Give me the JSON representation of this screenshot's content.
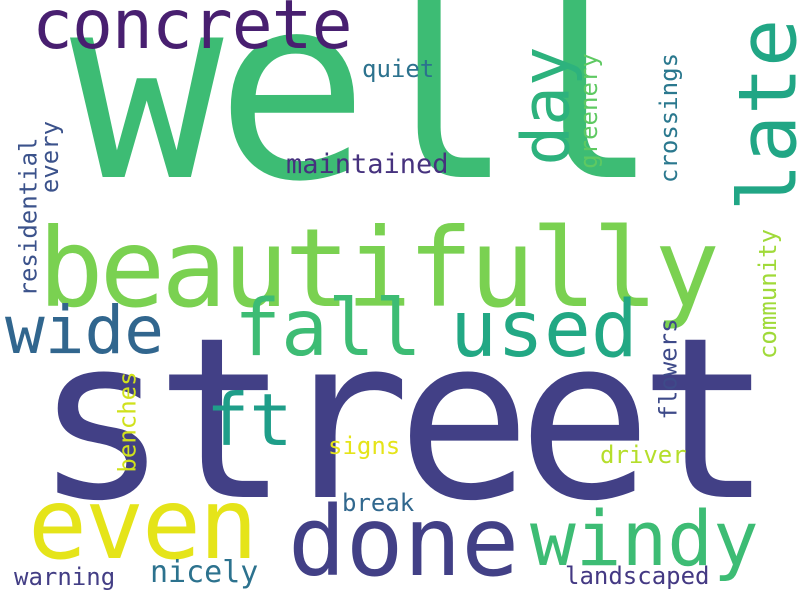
{
  "cloud": {
    "words": [
      {
        "text": "well",
        "color": "#3dbc74"
      },
      {
        "text": "street",
        "color": "#424086"
      },
      {
        "text": "beautifully",
        "color": "#7ad151"
      },
      {
        "text": "concrete",
        "color": "#481f70"
      },
      {
        "text": "day",
        "color": "#2db27d"
      },
      {
        "text": "late",
        "color": "#21a685"
      },
      {
        "text": "fall",
        "color": "#3dbc74"
      },
      {
        "text": "used",
        "color": "#22a884"
      },
      {
        "text": "wide",
        "color": "#31668e"
      },
      {
        "text": "ft",
        "color": "#1f9e89"
      },
      {
        "text": "even",
        "color": "#e5e419"
      },
      {
        "text": "done",
        "color": "#424086"
      },
      {
        "text": "windy",
        "color": "#3dbc74"
      },
      {
        "text": "quiet",
        "color": "#2c728e"
      },
      {
        "text": "maintained",
        "color": "#46327e"
      },
      {
        "text": "greenery",
        "color": "#5ec962"
      },
      {
        "text": "crossings",
        "color": "#2a788e"
      },
      {
        "text": "residential",
        "color": "#3b528b"
      },
      {
        "text": "every",
        "color": "#3b528b"
      },
      {
        "text": "community",
        "color": "#a0da39"
      },
      {
        "text": "flowers",
        "color": "#3e4a89"
      },
      {
        "text": "benches",
        "color": "#d0e11c"
      },
      {
        "text": "signs",
        "color": "#e5e419"
      },
      {
        "text": "driver",
        "color": "#b5de2b"
      },
      {
        "text": "break",
        "color": "#31688e"
      },
      {
        "text": "warning",
        "color": "#433e85"
      },
      {
        "text": "nicely",
        "color": "#2c728e"
      },
      {
        "text": "landscaped",
        "color": "#443983"
      }
    ]
  }
}
